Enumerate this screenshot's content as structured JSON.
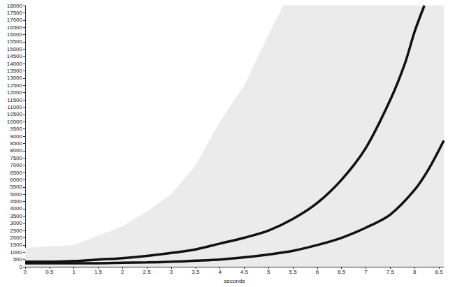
{
  "chart_data": {
    "type": "line",
    "x_label": "seconds",
    "xlim": [
      0,
      8.6
    ],
    "xticks": [
      0,
      0.5,
      1,
      1.5,
      2,
      2.5,
      3,
      3.5,
      4,
      4.5,
      5,
      5.5,
      6,
      6.5,
      7,
      7.5,
      8,
      8.5
    ],
    "ylim": [
      0,
      18000
    ],
    "yticks": [
      0,
      500,
      1000,
      1500,
      2000,
      2500,
      3000,
      3500,
      4000,
      4500,
      5000,
      5500,
      6000,
      6500,
      7000,
      7500,
      8000,
      8500,
      9000,
      9500,
      10000,
      10500,
      11000,
      11500,
      12000,
      12500,
      13000,
      13500,
      14000,
      14500,
      15000,
      15500,
      16000,
      16500,
      17000,
      17500,
      18000
    ],
    "grid": false,
    "series": [
      {
        "type": "area",
        "color": "#ebebeb",
        "x": [
          0,
          1,
          2,
          2.5,
          3,
          3.5,
          4,
          4.5,
          5,
          5.3,
          8.6
        ],
        "values": [
          1300,
          1500,
          2800,
          3800,
          5000,
          7000,
          10000,
          12500,
          16000,
          18000,
          18000
        ]
      },
      {
        "type": "line",
        "color": "#111111",
        "x": [
          0,
          0.5,
          1,
          1.5,
          2,
          2.5,
          3,
          3.5,
          4,
          4.5,
          5,
          5.5,
          6,
          6.5,
          7,
          7.5,
          7.8,
          8,
          8.2
        ],
        "values": [
          350,
          350,
          400,
          500,
          600,
          750,
          950,
          1200,
          1600,
          2000,
          2500,
          3300,
          4400,
          6000,
          8200,
          11500,
          14000,
          16200,
          18000
        ]
      },
      {
        "type": "line",
        "color": "#111111",
        "x": [
          0,
          0.5,
          1,
          1.5,
          2,
          2.5,
          3,
          3.5,
          4,
          4.5,
          5,
          5.5,
          6,
          6.5,
          7,
          7.5,
          8,
          8.3,
          8.6
        ],
        "values": [
          250,
          250,
          250,
          250,
          280,
          300,
          350,
          420,
          500,
          650,
          850,
          1100,
          1500,
          2000,
          2700,
          3600,
          5300,
          6800,
          8700
        ]
      }
    ]
  }
}
